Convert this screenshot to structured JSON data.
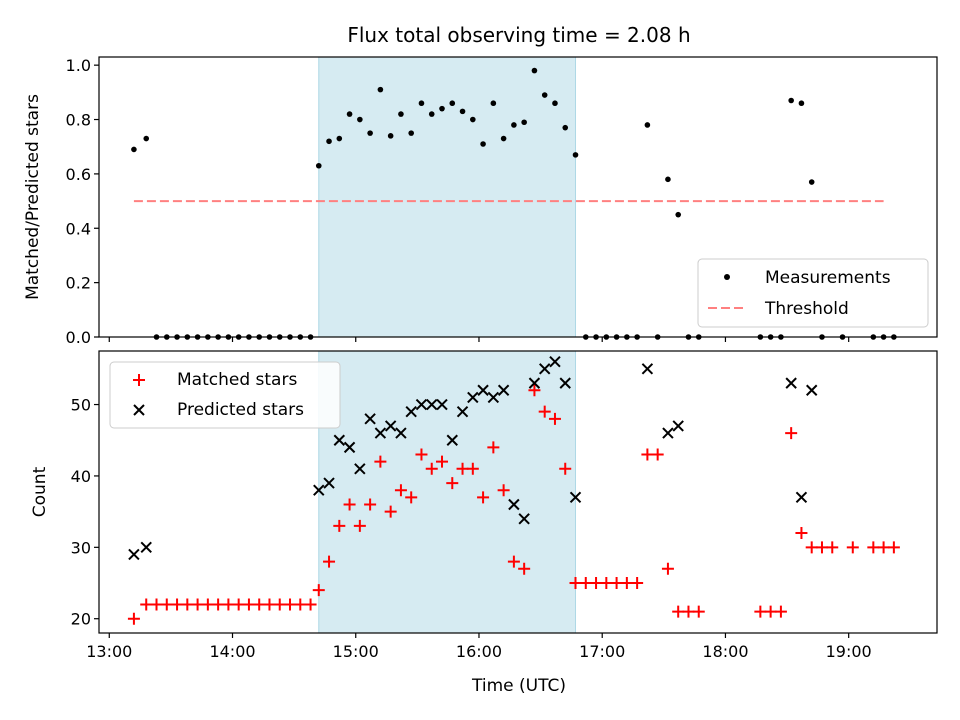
{
  "chart_data": [
    {
      "type": "scatter",
      "title": "Flux total observing time = 2.08 h",
      "xlabel": "",
      "ylabel": "Matched/Predicted stars",
      "xlim": [
        "12:55",
        "19:43"
      ],
      "ylim": [
        0,
        1.03
      ],
      "yticks": [
        "0.0",
        "0.2",
        "0.4",
        "0.6",
        "0.8",
        "1.0"
      ],
      "ytick_values": [
        0,
        0.2,
        0.4,
        0.6,
        0.8,
        1.0
      ],
      "shaded_region": [
        "14:42",
        "16:47"
      ],
      "shade_color": "#add8e6",
      "legend": {
        "placement": "lower-right"
      },
      "series": [
        {
          "name": "Measurements",
          "marker": "dot",
          "color": "#000000",
          "points": [
            [
              "13:12",
              0.69
            ],
            [
              "13:18",
              0.73
            ],
            [
              "13:23",
              0
            ],
            [
              "13:28",
              0
            ],
            [
              "13:33",
              0
            ],
            [
              "13:38",
              0
            ],
            [
              "13:43",
              0
            ],
            [
              "13:48",
              0
            ],
            [
              "13:53",
              0
            ],
            [
              "13:58",
              0
            ],
            [
              "14:03",
              0
            ],
            [
              "14:08",
              0
            ],
            [
              "14:13",
              0
            ],
            [
              "14:18",
              0
            ],
            [
              "14:23",
              0
            ],
            [
              "14:28",
              0
            ],
            [
              "14:33",
              0
            ],
            [
              "14:38",
              0
            ],
            [
              "14:42",
              0.63
            ],
            [
              "14:47",
              0.72
            ],
            [
              "14:52",
              0.73
            ],
            [
              "14:57",
              0.82
            ],
            [
              "15:02",
              0.8
            ],
            [
              "15:07",
              0.75
            ],
            [
              "15:12",
              0.91
            ],
            [
              "15:17",
              0.74
            ],
            [
              "15:22",
              0.82
            ],
            [
              "15:27",
              0.75
            ],
            [
              "15:32",
              0.86
            ],
            [
              "15:37",
              0.82
            ],
            [
              "15:42",
              0.84
            ],
            [
              "15:47",
              0.86
            ],
            [
              "15:52",
              0.83
            ],
            [
              "15:57",
              0.8
            ],
            [
              "16:02",
              0.71
            ],
            [
              "16:07",
              0.86
            ],
            [
              "16:12",
              0.73
            ],
            [
              "16:17",
              0.78
            ],
            [
              "16:22",
              0.79
            ],
            [
              "16:27",
              0.98
            ],
            [
              "16:32",
              0.89
            ],
            [
              "16:37",
              0.86
            ],
            [
              "16:42",
              0.77
            ],
            [
              "16:47",
              0.67
            ],
            [
              "16:52",
              0
            ],
            [
              "16:57",
              0
            ],
            [
              "17:02",
              0
            ],
            [
              "17:07",
              0
            ],
            [
              "17:12",
              0
            ],
            [
              "17:17",
              0
            ],
            [
              "17:22",
              0.78
            ],
            [
              "17:27",
              0
            ],
            [
              "17:32",
              0.58
            ],
            [
              "17:37",
              0.45
            ],
            [
              "17:42",
              0
            ],
            [
              "17:47",
              0
            ],
            [
              "18:17",
              0
            ],
            [
              "18:22",
              0
            ],
            [
              "18:27",
              0
            ],
            [
              "18:32",
              0.87
            ],
            [
              "18:37",
              0.86
            ],
            [
              "18:42",
              0.57
            ],
            [
              "18:47",
              0
            ],
            [
              "18:57",
              0
            ],
            [
              "19:12",
              0
            ],
            [
              "19:17",
              0
            ],
            [
              "19:22",
              0
            ]
          ]
        },
        {
          "name": "Threshold",
          "marker": "dashed-line",
          "color": "#ff8080",
          "points": [
            [
              "13:12",
              0.5
            ],
            [
              "19:17",
              0.5
            ]
          ]
        }
      ]
    },
    {
      "type": "scatter",
      "title": "",
      "xlabel": "Time (UTC)",
      "ylabel": "Count",
      "xlim": [
        "12:55",
        "19:43"
      ],
      "ylim": [
        18,
        57.5
      ],
      "xticks": [
        "13:00",
        "14:00",
        "15:00",
        "16:00",
        "17:00",
        "18:00",
        "19:00"
      ],
      "yticks": [
        "20",
        "30",
        "40",
        "50"
      ],
      "ytick_values": [
        20,
        30,
        40,
        50
      ],
      "shaded_region": [
        "14:42",
        "16:47"
      ],
      "shade_color": "#add8e6",
      "legend": {
        "placement": "upper-left"
      },
      "series": [
        {
          "name": "Matched stars",
          "marker": "plus",
          "color": "#ff0000",
          "points": [
            [
              "13:12",
              20
            ],
            [
              "13:18",
              22
            ],
            [
              "13:23",
              22
            ],
            [
              "13:28",
              22
            ],
            [
              "13:33",
              22
            ],
            [
              "13:38",
              22
            ],
            [
              "13:43",
              22
            ],
            [
              "13:48",
              22
            ],
            [
              "13:53",
              22
            ],
            [
              "13:58",
              22
            ],
            [
              "14:03",
              22
            ],
            [
              "14:08",
              22
            ],
            [
              "14:13",
              22
            ],
            [
              "14:18",
              22
            ],
            [
              "14:23",
              22
            ],
            [
              "14:28",
              22
            ],
            [
              "14:33",
              22
            ],
            [
              "14:38",
              22
            ],
            [
              "14:42",
              24
            ],
            [
              "14:47",
              28
            ],
            [
              "14:52",
              33
            ],
            [
              "14:57",
              36
            ],
            [
              "15:02",
              33
            ],
            [
              "15:07",
              36
            ],
            [
              "15:12",
              42
            ],
            [
              "15:17",
              35
            ],
            [
              "15:22",
              38
            ],
            [
              "15:27",
              37
            ],
            [
              "15:32",
              43
            ],
            [
              "15:37",
              41
            ],
            [
              "15:42",
              42
            ],
            [
              "15:47",
              39
            ],
            [
              "15:52",
              41
            ],
            [
              "15:57",
              41
            ],
            [
              "16:02",
              37
            ],
            [
              "16:07",
              44
            ],
            [
              "16:12",
              38
            ],
            [
              "16:17",
              28
            ],
            [
              "16:22",
              27
            ],
            [
              "16:27",
              52
            ],
            [
              "16:32",
              49
            ],
            [
              "16:37",
              48
            ],
            [
              "16:42",
              41
            ],
            [
              "16:47",
              25
            ],
            [
              "16:52",
              25
            ],
            [
              "16:57",
              25
            ],
            [
              "17:02",
              25
            ],
            [
              "17:07",
              25
            ],
            [
              "17:12",
              25
            ],
            [
              "17:17",
              25
            ],
            [
              "17:22",
              43
            ],
            [
              "17:27",
              43
            ],
            [
              "17:32",
              27
            ],
            [
              "17:37",
              21
            ],
            [
              "17:42",
              21
            ],
            [
              "17:47",
              21
            ],
            [
              "18:17",
              21
            ],
            [
              "18:22",
              21
            ],
            [
              "18:27",
              21
            ],
            [
              "18:32",
              46
            ],
            [
              "18:37",
              32
            ],
            [
              "18:42",
              30
            ],
            [
              "18:47",
              30
            ],
            [
              "18:52",
              30
            ],
            [
              "19:02",
              30
            ],
            [
              "19:12",
              30
            ],
            [
              "19:17",
              30
            ],
            [
              "19:22",
              30
            ]
          ]
        },
        {
          "name": "Predicted stars",
          "marker": "x",
          "color": "#000000",
          "points": [
            [
              "13:12",
              29
            ],
            [
              "13:18",
              30
            ],
            [
              "14:42",
              38
            ],
            [
              "14:47",
              39
            ],
            [
              "14:52",
              45
            ],
            [
              "14:57",
              44
            ],
            [
              "15:02",
              41
            ],
            [
              "15:07",
              48
            ],
            [
              "15:12",
              46
            ],
            [
              "15:17",
              47
            ],
            [
              "15:22",
              46
            ],
            [
              "15:27",
              49
            ],
            [
              "15:32",
              50
            ],
            [
              "15:37",
              50
            ],
            [
              "15:42",
              50
            ],
            [
              "15:47",
              45
            ],
            [
              "15:52",
              49
            ],
            [
              "15:57",
              51
            ],
            [
              "16:02",
              52
            ],
            [
              "16:07",
              51
            ],
            [
              "16:12",
              52
            ],
            [
              "16:17",
              36
            ],
            [
              "16:22",
              34
            ],
            [
              "16:27",
              53
            ],
            [
              "16:32",
              55
            ],
            [
              "16:37",
              56
            ],
            [
              "16:42",
              53
            ],
            [
              "16:47",
              37
            ],
            [
              "17:22",
              55
            ],
            [
              "17:32",
              46
            ],
            [
              "17:37",
              47
            ],
            [
              "18:32",
              53
            ],
            [
              "18:37",
              37
            ],
            [
              "18:42",
              52
            ]
          ]
        }
      ]
    }
  ]
}
